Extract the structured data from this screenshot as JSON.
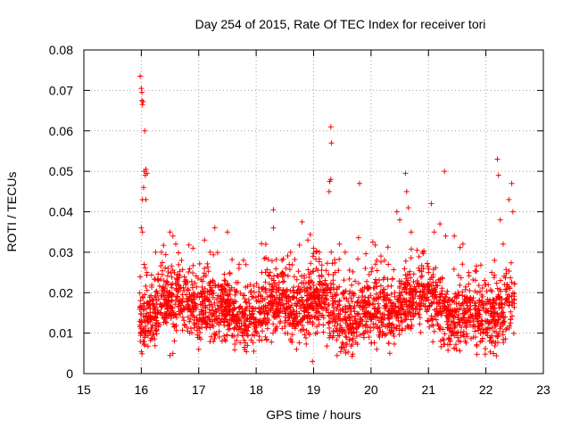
{
  "chart_data": {
    "type": "scatter",
    "title": "Day 254 of 2015, Rate Of TEC Index for receiver tori",
    "xlabel": "GPS time / hours",
    "ylabel": "ROTI / TECUs",
    "xlim": [
      15,
      23
    ],
    "ylim": [
      0,
      0.08
    ],
    "xticks": [
      15,
      16,
      17,
      18,
      19,
      20,
      21,
      22,
      23
    ],
    "xtick_labels": [
      "15",
      "16",
      "17",
      "18",
      "19",
      "20",
      "21",
      "22",
      "23"
    ],
    "yticks": [
      0,
      0.01,
      0.02,
      0.03,
      0.04,
      0.05,
      0.06,
      0.07,
      0.08
    ],
    "ytick_labels": [
      "0",
      "0.01",
      "0.02",
      "0.03",
      "0.04",
      "0.05",
      "0.06",
      "0.07",
      "0.08"
    ],
    "grid": true,
    "marker": "+",
    "color": "#ff0000",
    "series": [
      {
        "name": "ROTI",
        "points": [
          [
            15.98,
            0.0735
          ],
          [
            16.0,
            0.0705
          ],
          [
            16.01,
            0.0695
          ],
          [
            16.01,
            0.0675
          ],
          [
            16.02,
            0.0665
          ],
          [
            16.03,
            0.0672
          ],
          [
            16.06,
            0.06
          ],
          [
            16.05,
            0.05
          ],
          [
            16.07,
            0.049
          ],
          [
            16.08,
            0.0505
          ],
          [
            16.1,
            0.0495
          ],
          [
            16.04,
            0.046
          ],
          [
            16.02,
            0.043
          ],
          [
            16.08,
            0.043
          ],
          [
            16.0,
            0.036
          ],
          [
            16.02,
            0.035
          ],
          [
            16.05,
            0.027
          ],
          [
            16.1,
            0.025
          ],
          [
            16.25,
            0.03
          ],
          [
            16.35,
            0.03
          ],
          [
            16.5,
            0.035
          ],
          [
            16.55,
            0.034
          ],
          [
            16.6,
            0.032
          ],
          [
            16.7,
            0.028
          ],
          [
            16.9,
            0.031
          ],
          [
            17.1,
            0.033
          ],
          [
            17.2,
            0.03
          ],
          [
            17.5,
            0.035
          ],
          [
            17.7,
            0.026
          ],
          [
            17.9,
            0.022
          ],
          [
            18.1,
            0.021
          ],
          [
            18.3,
            0.0405
          ],
          [
            18.3,
            0.036
          ],
          [
            18.45,
            0.028
          ],
          [
            18.6,
            0.03
          ],
          [
            18.8,
            0.0375
          ],
          [
            18.9,
            0.033
          ],
          [
            19.0,
            0.031
          ],
          [
            19.1,
            0.03
          ],
          [
            19.28,
            0.0475
          ],
          [
            19.3,
            0.061
          ],
          [
            19.31,
            0.057
          ],
          [
            19.3,
            0.048
          ],
          [
            19.27,
            0.045
          ],
          [
            19.45,
            0.032
          ],
          [
            19.55,
            0.03
          ],
          [
            19.8,
            0.047
          ],
          [
            19.9,
            0.026
          ],
          [
            20.1,
            0.028
          ],
          [
            20.3,
            0.027
          ],
          [
            20.45,
            0.04
          ],
          [
            20.5,
            0.038
          ],
          [
            20.6,
            0.0495
          ],
          [
            20.62,
            0.045
          ],
          [
            20.65,
            0.041
          ],
          [
            20.7,
            0.035
          ],
          [
            20.9,
            0.03
          ],
          [
            21.05,
            0.042
          ],
          [
            21.1,
            0.035
          ],
          [
            21.2,
            0.037
          ],
          [
            21.28,
            0.05
          ],
          [
            21.3,
            0.034
          ],
          [
            21.45,
            0.034
          ],
          [
            21.6,
            0.032
          ],
          [
            21.7,
            0.025
          ],
          [
            22.0,
            0.022
          ],
          [
            22.1,
            0.025
          ],
          [
            22.15,
            0.028
          ],
          [
            22.2,
            0.053
          ],
          [
            22.22,
            0.049
          ],
          [
            22.25,
            0.038
          ],
          [
            22.3,
            0.032
          ],
          [
            22.4,
            0.043
          ],
          [
            22.45,
            0.047
          ],
          [
            22.47,
            0.04
          ],
          [
            18.98,
            0.003
          ],
          [
            16.5,
            0.0045
          ],
          [
            16.55,
            0.005
          ],
          [
            17.0,
            0.006
          ],
          [
            20.1,
            0.006
          ]
        ],
        "dense_band": {
          "x_range": [
            15.97,
            22.5
          ],
          "y_typical": [
            0.008,
            0.025
          ],
          "note": "dense cloud of ROTI samples"
        }
      }
    ]
  }
}
